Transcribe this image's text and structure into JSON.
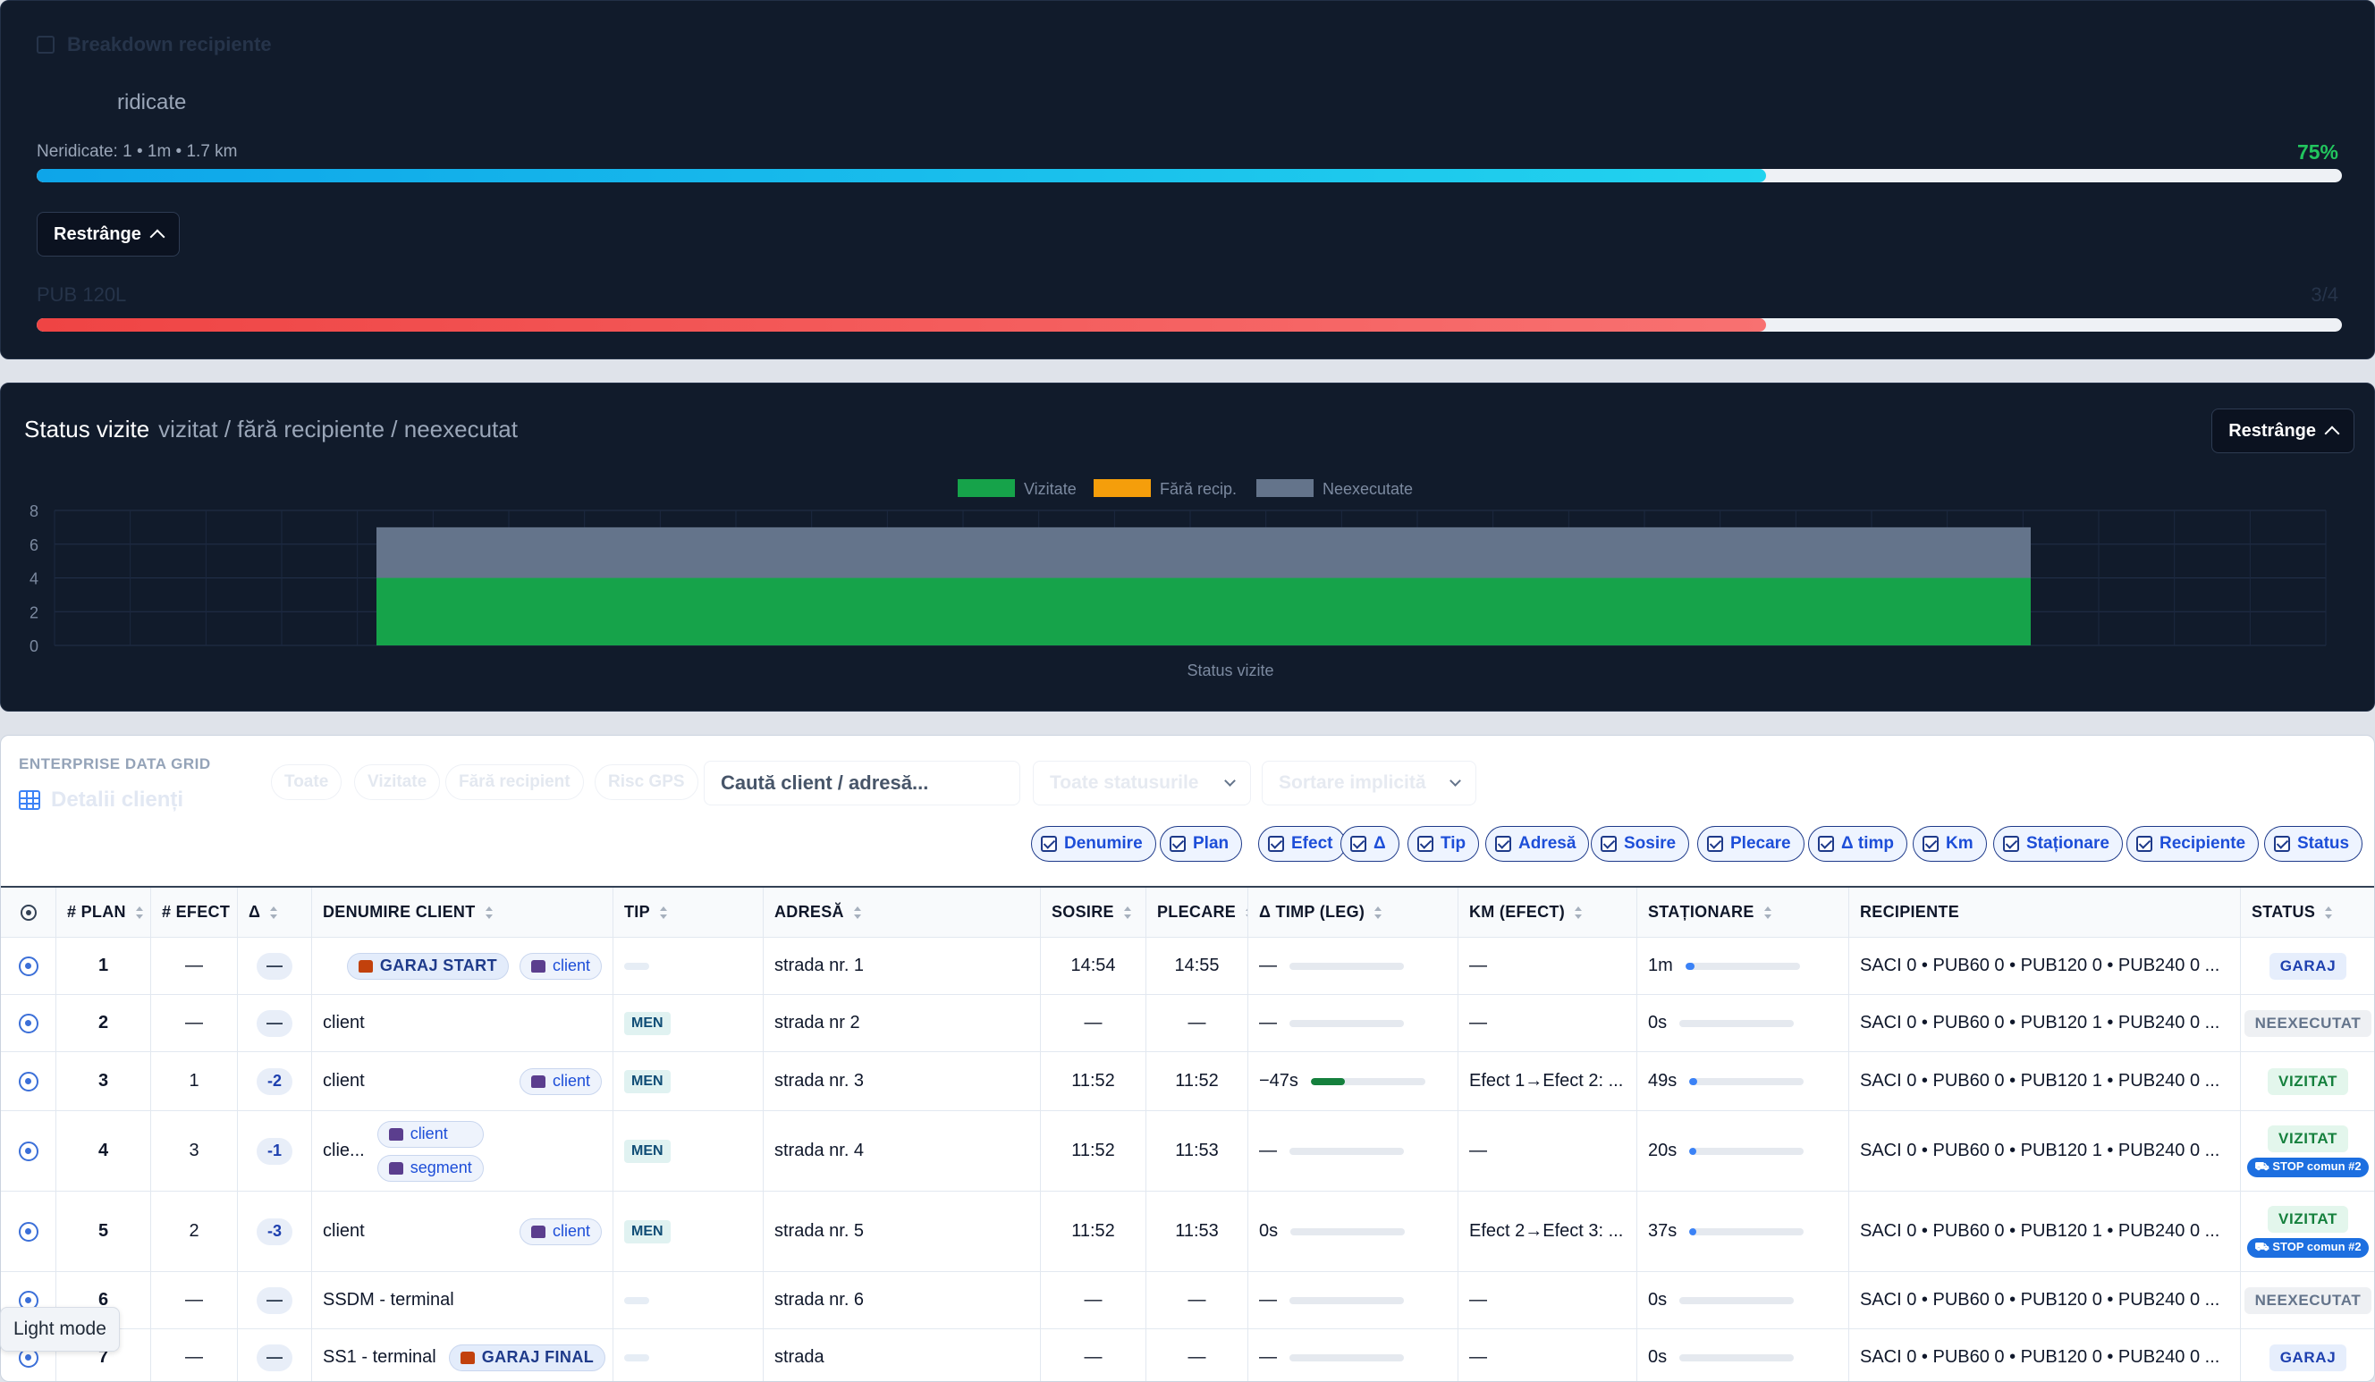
{
  "breakdown": {
    "title": "Breakdown recipiente",
    "subtitle": "ridicate",
    "meta": "Neridicate: 1  •  1m  •  1.7 km",
    "percent_label": "75%",
    "progress": 0.75,
    "collapse_label": "Restrânge",
    "pub_label": "PUB 120L",
    "pub_value": "3/4",
    "pub_progress": 0.75
  },
  "status_chart": {
    "title": "Status vizite",
    "subtitle": "vizitat / fără recipiente / neexecutat",
    "collapse_label": "Restrânge",
    "colors": {
      "vizitate": "#16a34a",
      "fara": "#f59e0b",
      "neexecutate": "#64748b"
    },
    "chart_data": {
      "type": "bar",
      "stacked": true,
      "categories": [
        "Status vizite"
      ],
      "series": [
        {
          "name": "Vizitate",
          "values": [
            4
          ]
        },
        {
          "name": "Fără recip.",
          "values": [
            0
          ]
        },
        {
          "name": "Neexecutate",
          "values": [
            3
          ]
        }
      ],
      "xlabel": "Status vizite",
      "ylim": [
        0,
        8
      ],
      "yticks": [
        "0",
        "2",
        "4",
        "6",
        "8"
      ],
      "grid": true,
      "legend": "top-center"
    }
  },
  "grid": {
    "label": "ENTERPRISE DATA GRID",
    "title": "Detalii clienți",
    "filters": [
      "Toate",
      "Vizitate",
      "Fără recipient",
      "Risc GPS"
    ],
    "search_placeholder": "Caută client / adresă...",
    "status_select": "Toate statusurile",
    "sort_select": "Sortare implicită",
    "column_toggles": [
      "Denumire",
      "Plan",
      "Efect",
      "Δ",
      "Tip",
      "Adresă",
      "Sosire",
      "Plecare",
      "Δ timp",
      "Km",
      "Staționare",
      "Recipiente",
      "Status"
    ],
    "headers": {
      "plan": "# PLAN",
      "efect": "# EFECT",
      "delta": "Δ",
      "name": "DENUMIRE CLIENT",
      "tip": "TIP",
      "adresa": "ADRESĂ",
      "sosire": "SOSIRE",
      "plecare": "PLECARE",
      "dtimp": "Δ TIMP (LEG)",
      "km": "KM (EFECT)",
      "stationare": "STAȚIONARE",
      "recipiente": "RECIPIENTE",
      "status": "STATUS"
    },
    "rows": [
      {
        "plan": "1",
        "efect": "—",
        "delta": "—",
        "name": "",
        "chips": [
          "GARAJ START",
          "client"
        ],
        "tip": "",
        "adresa": "strada nr. 1",
        "sosire": "14:54",
        "plecare": "14:55",
        "dtimp": "—",
        "dtimp_fill": 0,
        "km": "—",
        "stationare": "1m",
        "stat_fill": 0.08,
        "recipiente": "SACI 0 • PUB60 0 • PUB120 0 • PUB240 0 ...",
        "status": "GARAJ",
        "status_kind": "garaj",
        "stop": ""
      },
      {
        "plan": "2",
        "efect": "—",
        "delta": "—",
        "name": "client",
        "chips": [],
        "tip": "MEN",
        "adresa": "strada nr 2",
        "sosire": "—",
        "plecare": "—",
        "dtimp": "—",
        "dtimp_fill": 0,
        "km": "—",
        "stationare": "0s",
        "stat_fill": 0,
        "recipiente": "SACI 0 • PUB60 0 • PUB120 1 • PUB240 0 ...",
        "status": "NEEXECUTAT",
        "status_kind": "neexecutat",
        "stop": ""
      },
      {
        "plan": "3",
        "efect": "1",
        "delta": "-2",
        "name": "client",
        "chips": [
          "client"
        ],
        "tip": "MEN",
        "adresa": "strada nr. 3",
        "sosire": "11:52",
        "plecare": "11:52",
        "dtimp": "−47s",
        "dtimp_fill": 0.3,
        "km": "Efect 1→Efect 2: ...",
        "stationare": "49s",
        "stat_fill": 0.07,
        "recipiente": "SACI 0 • PUB60 0 • PUB120 1 • PUB240 0 ...",
        "status": "VIZITAT",
        "status_kind": "vizitat",
        "stop": ""
      },
      {
        "plan": "4",
        "efect": "3",
        "delta": "-1",
        "name": "clie...",
        "chips": [
          "client",
          "segment"
        ],
        "tip": "MEN",
        "adresa": "strada nr. 4",
        "sosire": "11:52",
        "plecare": "11:53",
        "dtimp": "—",
        "dtimp_fill": 0,
        "km": "—",
        "stationare": "20s",
        "stat_fill": 0.03,
        "recipiente": "SACI 0 • PUB60 0 • PUB120 1 • PUB240 0 ...",
        "status": "VIZITAT",
        "status_kind": "vizitat",
        "stop": "STOP comun #2"
      },
      {
        "plan": "5",
        "efect": "2",
        "delta": "-3",
        "name": "client",
        "chips": [
          "client"
        ],
        "tip": "MEN",
        "adresa": "strada nr. 5",
        "sosire": "11:52",
        "plecare": "11:53",
        "dtimp": "0s",
        "dtimp_fill": 0,
        "km": "Efect 2→Efect 3: ...",
        "stationare": "37s",
        "stat_fill": 0.05,
        "recipiente": "SACI 0 • PUB60 0 • PUB120 1 • PUB240 0 ...",
        "status": "VIZITAT",
        "status_kind": "vizitat",
        "stop": "STOP comun #2"
      },
      {
        "plan": "6",
        "efect": "—",
        "delta": "—",
        "name": "SSDM - terminal",
        "chips": [],
        "tip": "",
        "adresa": "strada nr. 6",
        "sosire": "—",
        "plecare": "—",
        "dtimp": "—",
        "dtimp_fill": 0,
        "km": "—",
        "stationare": "0s",
        "stat_fill": 0,
        "recipiente": "SACI 0 • PUB60 0 • PUB120 0 • PUB240 0 ...",
        "status": "NEEXECUTAT",
        "status_kind": "neexecutat",
        "stop": ""
      },
      {
        "plan": "7",
        "efect": "—",
        "delta": "—",
        "name": "SS1 - terminal",
        "chips": [
          "GARAJ FINAL"
        ],
        "tip": "",
        "adresa": "strada",
        "sosire": "—",
        "plecare": "—",
        "dtimp": "—",
        "dtimp_fill": 0,
        "km": "—",
        "stationare": "0s",
        "stat_fill": 0,
        "recipiente": "SACI 0 • PUB60 0 • PUB120 0 • PUB240 0 ...",
        "status": "GARAJ",
        "status_kind": "garaj",
        "stop": ""
      }
    ]
  },
  "tooltip": "Light mode"
}
